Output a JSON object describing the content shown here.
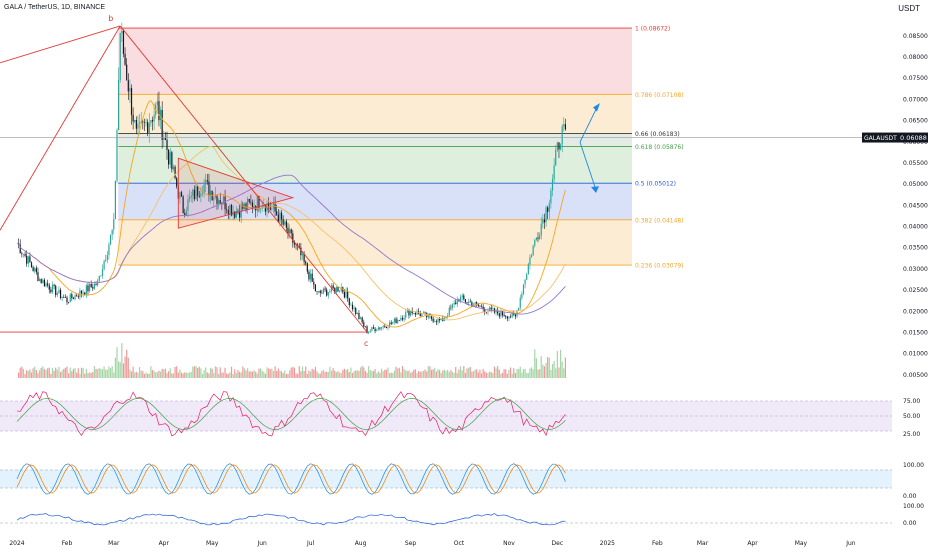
{
  "header": {
    "title": "GALA / TetherUS, 1D, BINANCE",
    "quote_currency": "USDT"
  },
  "price_axis": {
    "ticks": [
      "0.08500",
      "0.08000",
      "0.07500",
      "0.07000",
      "0.06500",
      "0.06000",
      "0.05500",
      "0.05000",
      "0.04500",
      "0.04000",
      "0.03500",
      "0.03000",
      "0.02500",
      "0.02000",
      "0.01500",
      "0.01000",
      "0.00500"
    ],
    "last_label": "GALAUSDT",
    "last_value": "0.06088"
  },
  "time_axis": {
    "ticks": [
      "2024",
      "Feb",
      "Mar",
      "Apr",
      "May",
      "Jun",
      "Jul",
      "Aug",
      "Sep",
      "Oct",
      "Nov",
      "Dec",
      "2025",
      "Feb",
      "Mar",
      "Apr",
      "May",
      "Jun"
    ]
  },
  "fib_levels": [
    {
      "ratio": 1,
      "label": "1 (0.08672)",
      "color": "#e53935"
    },
    {
      "ratio": 0.786,
      "label": "0.786 (0.07108)",
      "color": "#f5a623"
    },
    {
      "ratio": 0.66,
      "label": "0.66 (0.06183)",
      "color": "#2e3b2e"
    },
    {
      "ratio": 0.618,
      "label": "0.618 (0.05876)",
      "color": "#43a047"
    },
    {
      "ratio": 0.5,
      "label": "0.5 (0.05012)",
      "color": "#1e5bd6"
    },
    {
      "ratio": 0.382,
      "label": "0.382 (0.04148)",
      "color": "#f5a623"
    },
    {
      "ratio": 0.236,
      "label": "0.236 (0.03079)",
      "color": "#f5a623"
    }
  ],
  "wave_labels": {
    "b": "b",
    "c": "c"
  },
  "indicators": {
    "rsi_ticks": [
      "75.00",
      "50.00",
      "25.00"
    ],
    "stoch_ticks": [
      "100.00",
      "0.00"
    ],
    "osc_ticks": [
      "100.00",
      "0.00"
    ]
  },
  "colors": {
    "up": "#26a69a",
    "down": "#131722",
    "ma_orange": "#f5a623",
    "ma_purple": "#9575cd",
    "blue": "#1e88e5",
    "red": "#e53935"
  },
  "chart_data": {
    "type": "candlestick",
    "title": "GALA / TetherUS, 1D, BINANCE",
    "x_range": [
      "2024-01-01",
      "2025-06-15"
    ],
    "ylim": [
      0.0025,
      0.0905
    ],
    "price_anchors": [
      {
        "date": "2024-01-01",
        "close": 0.036
      },
      {
        "date": "2024-01-15",
        "close": 0.0275
      },
      {
        "date": "2024-02-01",
        "close": 0.0225
      },
      {
        "date": "2024-02-20",
        "close": 0.0265
      },
      {
        "date": "2024-03-01",
        "close": 0.04
      },
      {
        "date": "2024-03-05",
        "close": 0.086
      },
      {
        "date": "2024-03-15",
        "close": 0.061
      },
      {
        "date": "2024-03-28",
        "close": 0.068
      },
      {
        "date": "2024-04-05",
        "close": 0.055
      },
      {
        "date": "2024-04-13",
        "close": 0.044
      },
      {
        "date": "2024-04-25",
        "close": 0.05
      },
      {
        "date": "2024-05-15",
        "close": 0.0435
      },
      {
        "date": "2024-06-01",
        "close": 0.046
      },
      {
        "date": "2024-06-10",
        "close": 0.043
      },
      {
        "date": "2024-06-25",
        "close": 0.033
      },
      {
        "date": "2024-07-05",
        "close": 0.024
      },
      {
        "date": "2024-07-20",
        "close": 0.0255
      },
      {
        "date": "2024-08-05",
        "close": 0.0152
      },
      {
        "date": "2024-08-20",
        "close": 0.017
      },
      {
        "date": "2024-09-01",
        "close": 0.02
      },
      {
        "date": "2024-09-20",
        "close": 0.0175
      },
      {
        "date": "2024-10-01",
        "close": 0.023
      },
      {
        "date": "2024-10-20",
        "close": 0.02
      },
      {
        "date": "2024-11-05",
        "close": 0.0185
      },
      {
        "date": "2024-11-15",
        "close": 0.034
      },
      {
        "date": "2024-11-25",
        "close": 0.045
      },
      {
        "date": "2024-12-03",
        "close": 0.062
      },
      {
        "date": "2024-12-06",
        "close": 0.0609
      }
    ],
    "fib_levels": [
      {
        "ratio": 1,
        "price": 0.08672
      },
      {
        "ratio": 0.786,
        "price": 0.07108
      },
      {
        "ratio": 0.66,
        "price": 0.06183
      },
      {
        "ratio": 0.618,
        "price": 0.05876
      },
      {
        "ratio": 0.5,
        "price": 0.05012
      },
      {
        "ratio": 0.382,
        "price": 0.04148
      },
      {
        "ratio": 0.236,
        "price": 0.03079
      }
    ],
    "last_price": 0.06088,
    "grid": false
  }
}
